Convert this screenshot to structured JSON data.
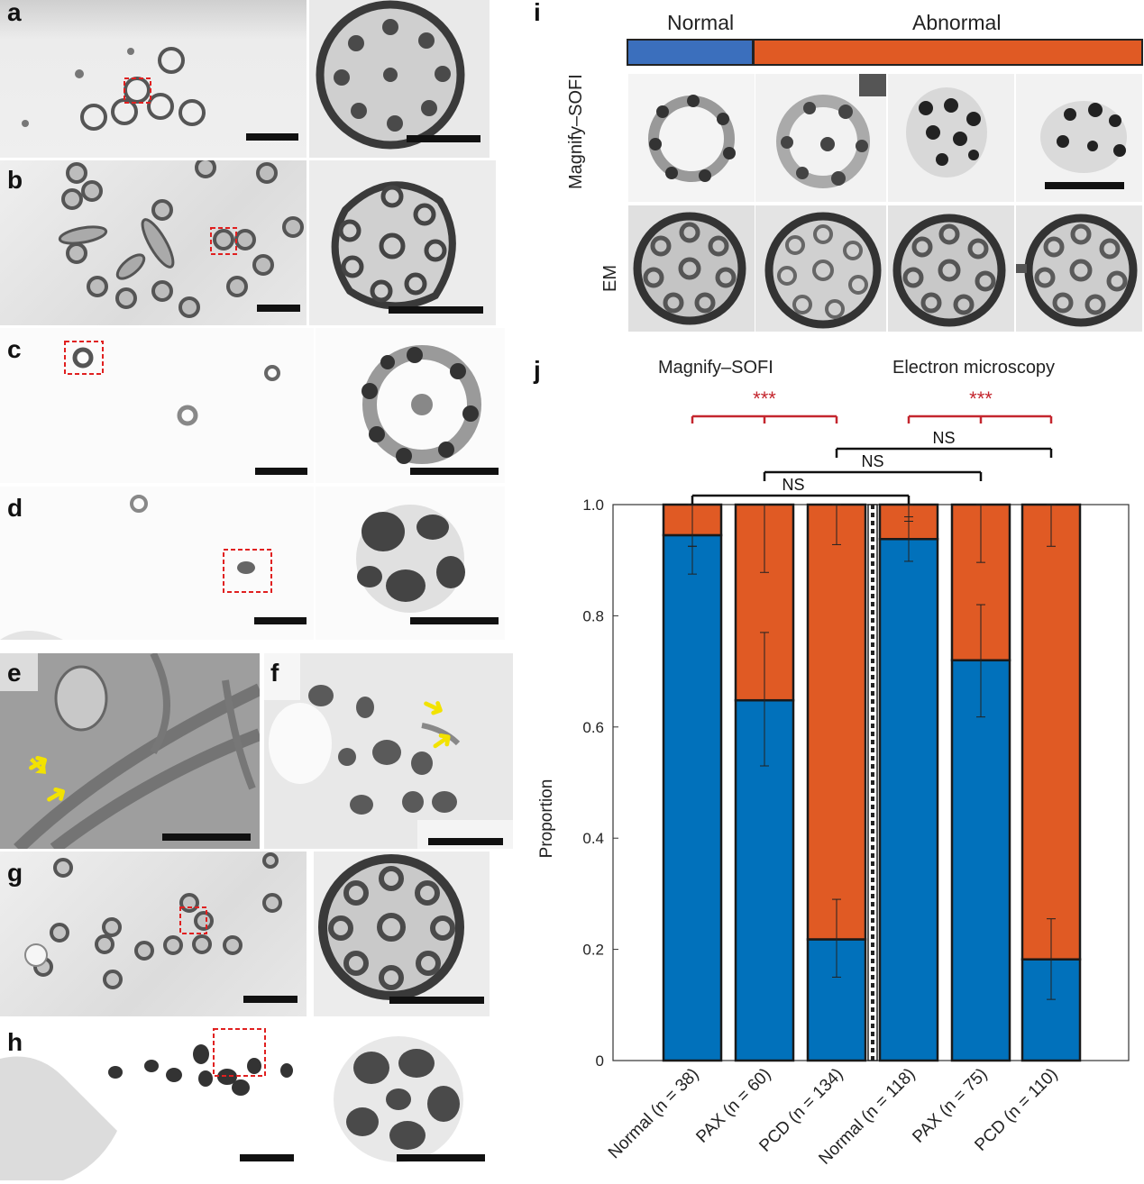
{
  "panel_labels": {
    "a": "a",
    "b": "b",
    "c": "c",
    "d": "d",
    "e": "e",
    "f": "f",
    "g": "g",
    "h": "h",
    "i": "i",
    "j": "j"
  },
  "panel_i": {
    "header_normal": "Normal",
    "header_abnormal": "Abnormal",
    "row_sofi": "Magnify–SOFI",
    "row_em": "EM",
    "colors": {
      "normal": "#3b6fbd",
      "abnormal": "#e05a24"
    }
  },
  "chart_data": {
    "type": "bar",
    "stacked": true,
    "categories": [
      "Normal (n = 38)",
      "PAX (n = 60)",
      "PCD (n = 134)",
      "Normal (n = 118)",
      "PAX (n = 75)",
      "PCD (n = 110)"
    ],
    "groups": [
      "Magnify–SOFI",
      "Electron microscopy"
    ],
    "series": [
      {
        "values": [
          0.945,
          0.648,
          0.218,
          0.938,
          0.72,
          0.182
        ],
        "color": "#0171bb"
      },
      {
        "values": [
          0.055,
          0.352,
          0.782,
          0.062,
          0.28,
          0.818
        ],
        "color": "#e05a24"
      }
    ],
    "error_lower": [
      [
        0.875,
        0.925
      ],
      [
        0.53,
        0.77
      ],
      [
        0.15,
        0.29
      ],
      [
        0.898,
        0.978
      ],
      [
        0.618,
        0.82
      ],
      [
        0.11,
        0.255
      ]
    ],
    "error_upper": [
      [
        0.925,
        1.0
      ],
      [
        0.878,
        1.0
      ],
      [
        0.928,
        1.0
      ],
      [
        0.97,
        1.0
      ],
      [
        0.896,
        1.0
      ],
      [
        0.925,
        1.0
      ]
    ],
    "ylabel": "Proportion",
    "ylim": [
      0,
      1.0
    ],
    "yticks": [
      "0",
      "0.2",
      "0.4",
      "0.6",
      "0.8",
      "1.0"
    ],
    "significance": [
      {
        "label": "***",
        "from": 0,
        "to": 2
      },
      {
        "label": "***",
        "from": 3,
        "to": 5
      },
      {
        "label": "NS",
        "from": 0,
        "to": 3
      },
      {
        "label": "NS",
        "from": 1,
        "to": 4
      },
      {
        "label": "NS",
        "from": 2,
        "to": 5
      }
    ]
  }
}
